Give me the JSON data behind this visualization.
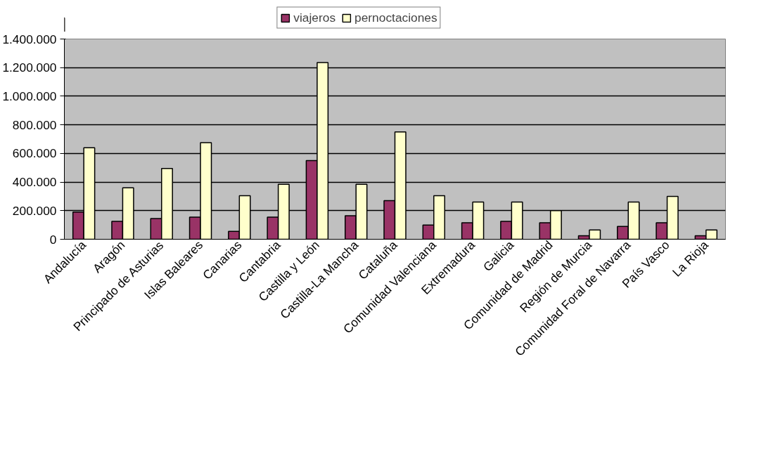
{
  "chart_data": {
    "type": "bar",
    "categories": [
      "Andalucía",
      "Aragón",
      "Principado de Asturias",
      "Islas Baleares",
      "Canarias",
      "Cantabria",
      "Castilla y León",
      "Castilla-La Mancha",
      "Cataluña",
      "Comunidad Valenciana",
      "Extremadura",
      "Galicia",
      "Comunidad de Madrid",
      "Región de Murcia",
      "Comunidad Foral de Navarra",
      "País Vasco",
      "La Rioja"
    ],
    "series": [
      {
        "name": "viajeros",
        "color": "#993366",
        "values": [
          190000,
          125000,
          145000,
          155000,
          55000,
          155000,
          550000,
          165000,
          270000,
          100000,
          115000,
          125000,
          115000,
          25000,
          90000,
          115000,
          25000
        ]
      },
      {
        "name": "pernoctaciones",
        "color": "#ffffcc",
        "values": [
          640000,
          360000,
          495000,
          675000,
          305000,
          385000,
          1235000,
          385000,
          750000,
          305000,
          260000,
          260000,
          200000,
          65000,
          260000,
          300000,
          65000
        ]
      }
    ],
    "ylim": [
      0,
      1400000
    ],
    "yticks": [
      {
        "value": 0,
        "label": "0"
      },
      {
        "value": 200000,
        "label": "200.000"
      },
      {
        "value": 400000,
        "label": "400.000"
      },
      {
        "value": 600000,
        "label": "600.000"
      },
      {
        "value": 800000,
        "label": "800.000"
      },
      {
        "value": 1000000,
        "label": "1.000.000"
      },
      {
        "value": 1200000,
        "label": "1.200.000"
      },
      {
        "value": 1400000,
        "label": "1.400.000"
      }
    ],
    "grid": "y",
    "legend": "top"
  }
}
